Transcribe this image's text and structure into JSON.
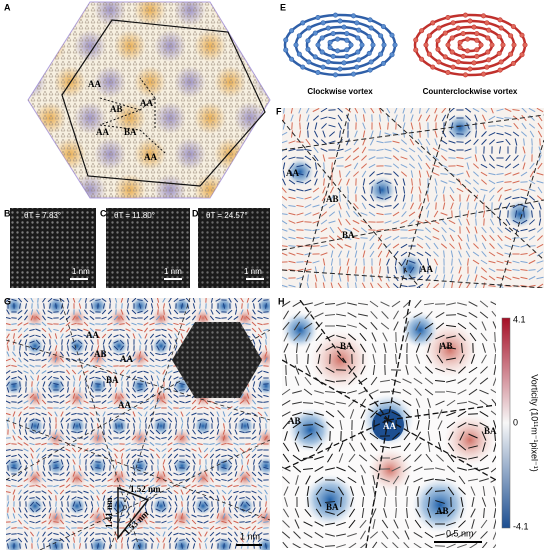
{
  "panels": {
    "A": {
      "letter": "A",
      "labels": [
        "AA",
        "AB",
        "AA",
        "AA",
        "BA",
        "AA"
      ]
    },
    "B": {
      "letter": "B",
      "angle": "θT = 7.83°",
      "scale": "1 nm"
    },
    "C": {
      "letter": "C",
      "angle": "θT = 11.80°",
      "scale": "1 nm"
    },
    "D": {
      "letter": "D",
      "angle": "θT = 24.57°",
      "scale": "1 nm"
    },
    "E": {
      "letter": "E",
      "captions": [
        "Clockwise vortex",
        "Counterclockwise vortex"
      ]
    },
    "F": {
      "letter": "F",
      "labels": [
        "AA",
        "AB",
        "BA",
        "AA"
      ]
    },
    "G": {
      "letter": "G",
      "labels": [
        "AA",
        "AB",
        "AA",
        "BA",
        "AA"
      ],
      "distances": [
        "1.52 nm",
        "1.41 nm",
        "1.53 nm"
      ],
      "scale": "1 nm"
    },
    "H": {
      "letter": "H",
      "labels": [
        "BA",
        "AB",
        "AB",
        "AA",
        "BA",
        "BA",
        "AB"
      ],
      "scale": "0.5 nm",
      "colorbar": {
        "max": "4.1",
        "mid": "0",
        "min": "-4.1",
        "title": "Vorticity (10¹¹m⁻¹pixel⁻¹)"
      }
    }
  }
}
